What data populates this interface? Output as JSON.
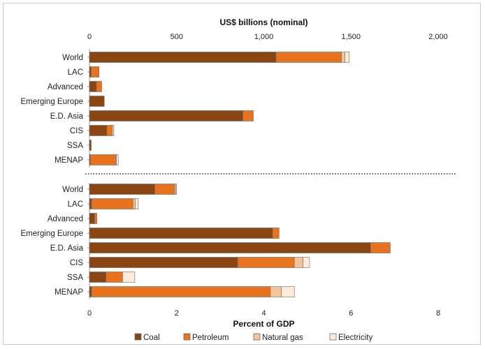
{
  "colors": {
    "Coal": "#8b4513",
    "Petroleum": "#e8731f",
    "Natural gas": "#f6c49a",
    "Electricity": "#fcebd8",
    "edge": "#6b6b6b"
  },
  "chart_data": [
    {
      "type": "bar",
      "orientation": "horizontal",
      "stacked": true,
      "title": "US$ billions (nominal)",
      "xlabel": "US$ billions (nominal)",
      "axis_position": "top",
      "xlim": [
        0,
        2000
      ],
      "xticks": [
        0,
        500,
        1000,
        1500,
        2000
      ],
      "xtick_labels": [
        "0",
        "500",
        "1,000",
        "1,500",
        "2,000"
      ],
      "categories": [
        "World",
        "LAC",
        "Advanced",
        "Emerging Europe",
        "E.D. Asia",
        "CIS",
        "SSA",
        "MENAP"
      ],
      "series": [
        {
          "name": "Coal",
          "values": [
            1070,
            10,
            40,
            85,
            880,
            100,
            10,
            5
          ]
        },
        {
          "name": "Petroleum",
          "values": [
            375,
            45,
            30,
            0,
            60,
            30,
            0,
            145
          ]
        },
        {
          "name": "Natural gas",
          "values": [
            20,
            0,
            0,
            0,
            0,
            10,
            0,
            5
          ]
        },
        {
          "name": "Electricity",
          "values": [
            25,
            0,
            0,
            0,
            0,
            0,
            0,
            10
          ]
        }
      ]
    },
    {
      "type": "bar",
      "orientation": "horizontal",
      "stacked": true,
      "xlabel": "Percent of GDP",
      "axis_position": "bottom",
      "xlim": [
        0,
        8
      ],
      "xticks": [
        0,
        2,
        4,
        6,
        8
      ],
      "xtick_labels": [
        "0",
        "2",
        "4",
        "6",
        "8"
      ],
      "categories": [
        "World",
        "LAC",
        "Advanced",
        "Emerging Europe",
        "E.D. Asia",
        "CIS",
        "SSA",
        "MENAP"
      ],
      "series": [
        {
          "name": "Coal",
          "values": [
            1.5,
            0.05,
            0.12,
            4.2,
            6.45,
            3.4,
            0.38,
            0.05
          ]
        },
        {
          "name": "Petroleum",
          "values": [
            0.45,
            0.95,
            0.05,
            0.15,
            0.45,
            1.3,
            0.38,
            4.1
          ]
        },
        {
          "name": "Natural gas",
          "values": [
            0.03,
            0.05,
            0,
            0,
            0,
            0.2,
            0,
            0.25
          ]
        },
        {
          "name": "Electricity",
          "values": [
            0.02,
            0.07,
            0,
            0,
            0,
            0.15,
            0.28,
            0.3
          ]
        }
      ]
    }
  ],
  "legend": {
    "position": "bottom",
    "items": [
      "Coal",
      "Petroleum",
      "Natural gas",
      "Electricity"
    ]
  }
}
